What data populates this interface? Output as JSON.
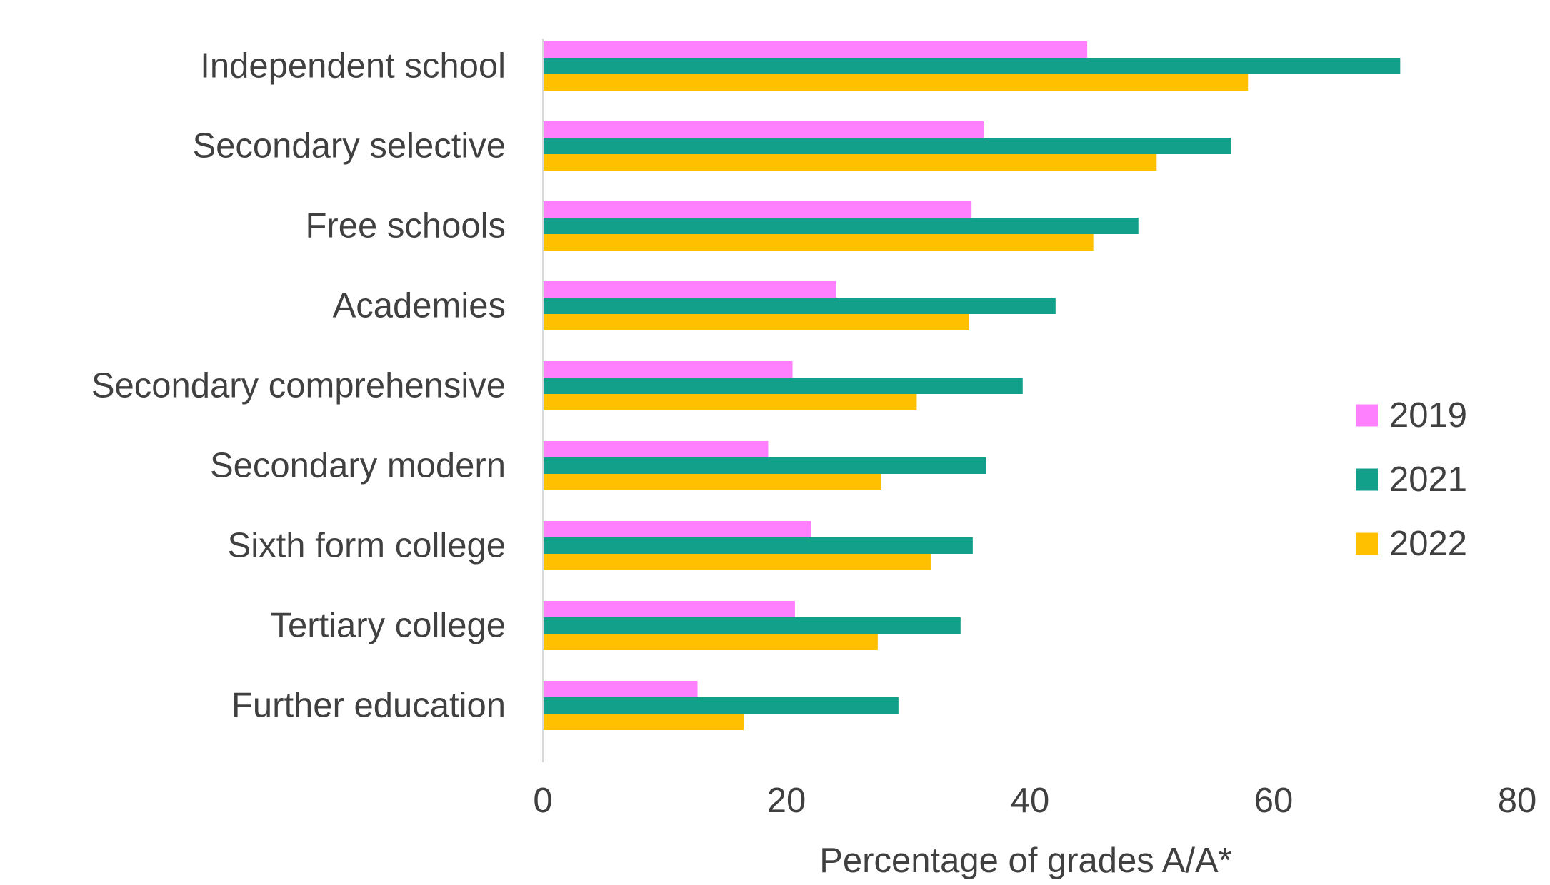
{
  "chart_data": {
    "type": "bar",
    "orientation": "horizontal",
    "title": "",
    "xlabel": "Percentage of grades A/A*",
    "ylabel": "",
    "xlim": [
      0,
      80
    ],
    "x_ticks": [
      0,
      20,
      40,
      60,
      80
    ],
    "grid": false,
    "legend_position": "right",
    "categories": [
      "Independent school",
      "Secondary selective",
      "Free schools",
      "Academies",
      "Secondary comprehensive",
      "Secondary modern",
      "Sixth form college",
      "Tertiary college",
      "Further education"
    ],
    "series": [
      {
        "name": "2019",
        "color": "#FF80FF",
        "values": [
          44.7,
          36.2,
          35.2,
          24.1,
          20.5,
          18.5,
          22.0,
          20.7,
          12.7
        ]
      },
      {
        "name": "2021",
        "color": "#12A08A",
        "values": [
          70.4,
          56.5,
          48.9,
          42.1,
          39.4,
          36.4,
          35.3,
          34.3,
          29.2
        ]
      },
      {
        "name": "2022",
        "color": "#FFC000",
        "values": [
          57.9,
          50.4,
          45.2,
          35.0,
          30.7,
          27.8,
          31.9,
          27.5,
          16.5
        ]
      }
    ]
  }
}
